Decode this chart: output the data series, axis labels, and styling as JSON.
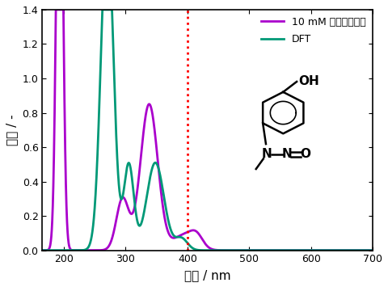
{
  "title": "",
  "xlabel": "波長 / nm",
  "ylabel": "吸収 / -",
  "xlim": [
    165,
    700
  ],
  "ylim": [
    0,
    1.4
  ],
  "yticks": [
    0,
    0.2,
    0.4,
    0.6,
    0.8,
    1.0,
    1.2,
    1.4
  ],
  "xticks": [
    200,
    300,
    400,
    500,
    600,
    700
  ],
  "vline_x": 400,
  "vline_color": "#ff0000",
  "bg_color": "#ffffff",
  "ax_bg_color": "#ffffff",
  "text_color": "#000000",
  "purple_color": "#aa00cc",
  "teal_color": "#009977",
  "legend_label_purple": "10 mM メタノール中",
  "legend_label_teal": "DFT",
  "line_width": 2.0,
  "purple_peaks": [
    {
      "mu": 193,
      "sigma": 5,
      "amp": 3.0
    },
    {
      "mu": 295,
      "sigma": 10,
      "amp": 0.3
    },
    {
      "mu": 338,
      "sigma": 14,
      "amp": 0.85
    },
    {
      "mu": 395,
      "sigma": 18,
      "amp": 0.09
    },
    {
      "mu": 415,
      "sigma": 10,
      "amp": 0.06
    }
  ],
  "teal_peaks": [
    {
      "mu": 270,
      "sigma": 10,
      "amp": 1.9
    },
    {
      "mu": 305,
      "sigma": 8,
      "amp": 0.5
    },
    {
      "mu": 348,
      "sigma": 14,
      "amp": 0.51
    },
    {
      "mu": 390,
      "sigma": 10,
      "amp": 0.07
    }
  ]
}
